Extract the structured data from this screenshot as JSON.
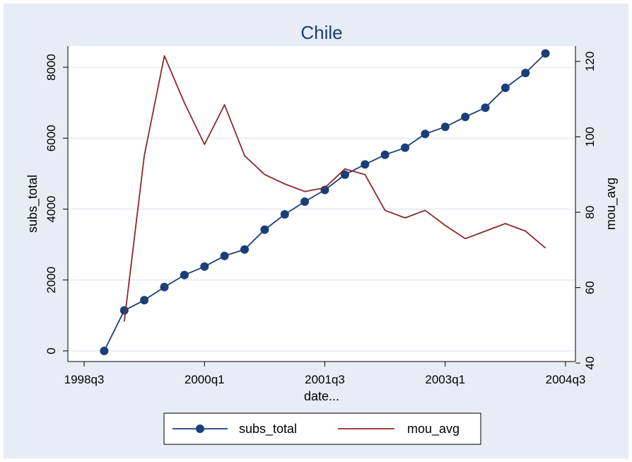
{
  "chart_data": {
    "type": "line",
    "title": "Chile",
    "xlabel": "date...",
    "ylabel_left": "subs_total",
    "ylabel_right": "mou_avg",
    "x_ticks": [
      "1998q3",
      "2000q1",
      "2001q3",
      "2003q1",
      "2004q3"
    ],
    "x_tick_index": [
      0,
      6,
      12,
      18,
      24
    ],
    "y_left_ticks": [
      0,
      2000,
      4000,
      6000,
      8000
    ],
    "y_left_lim": [
      -300,
      8600
    ],
    "y_right_ticks": [
      40,
      60,
      80,
      100,
      120
    ],
    "y_right_lim": [
      40.4,
      124.1
    ],
    "grid": true,
    "legend_position": "bottom",
    "colors": {
      "background": "#e8ecf5",
      "plot_bg": "#ffffff",
      "subs_total": "#1a3e7a",
      "mou_avg": "#8b2a2a",
      "grid": "#dfe6f0",
      "title": "#1a3e7a"
    },
    "series": [
      {
        "name": "subs_total",
        "axis": "left",
        "marker": "circle",
        "x": [
          "1998q4",
          "1999q1",
          "1999q2",
          "1999q3",
          "1999q4",
          "2000q1",
          "2000q2",
          "2000q3",
          "2000q4",
          "2001q1",
          "2001q2",
          "2001q3",
          "2001q4",
          "2002q1",
          "2002q2",
          "2002q3",
          "2002q4",
          "2003q1",
          "2003q2",
          "2003q3",
          "2003q4",
          "2004q1",
          "2004q2"
        ],
        "x_index": [
          1,
          2,
          3,
          4,
          5,
          6,
          7,
          8,
          9,
          10,
          11,
          12,
          13,
          14,
          15,
          16,
          17,
          18,
          19,
          20,
          21,
          22,
          23
        ],
        "values": [
          0,
          1140,
          1430,
          1800,
          2140,
          2380,
          2680,
          2860,
          3420,
          3850,
          4210,
          4540,
          4970,
          5260,
          5530,
          5730,
          6120,
          6320,
          6600,
          6860,
          7420,
          7840,
          8390
        ]
      },
      {
        "name": "mou_avg",
        "axis": "right",
        "marker": "none",
        "x": [
          "1999q1",
          "1999q2",
          "1999q3",
          "1999q4",
          "2000q1",
          "2000q2",
          "2000q3",
          "2000q4",
          "2001q1",
          "2001q2",
          "2001q3",
          "2001q4",
          "2002q1",
          "2002q2",
          "2002q3",
          "2002q4",
          "2003q1",
          "2003q2",
          "2003q3",
          "2003q4",
          "2004q1",
          "2004q2"
        ],
        "x_index": [
          2,
          3,
          4,
          5,
          6,
          7,
          8,
          9,
          10,
          11,
          12,
          13,
          14,
          15,
          16,
          17,
          18,
          19,
          20,
          21,
          22,
          23
        ],
        "values": [
          51,
          95,
          121.5,
          109,
          98,
          108.5,
          95,
          90,
          87.5,
          85.5,
          86.5,
          91.5,
          90,
          80.5,
          78.5,
          80.5,
          76.5,
          73,
          75,
          77,
          75,
          70.5
        ]
      }
    ]
  }
}
